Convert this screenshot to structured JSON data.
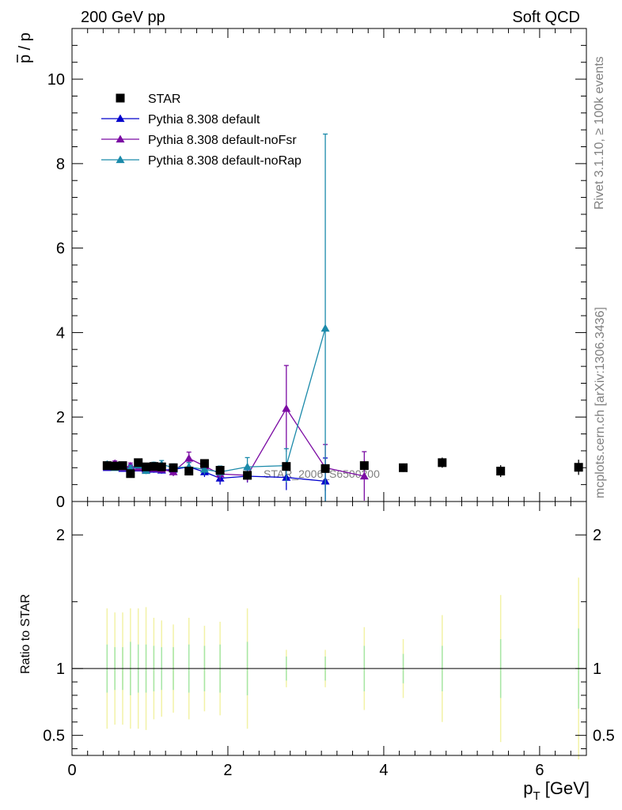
{
  "header": {
    "left": "200 GeV pp",
    "right": "Soft QCD"
  },
  "side_text": {
    "rivet": "Rivet 3.1.10, ≥ 100k events",
    "mcplots": "mcplots.cern.ch [arXiv:1306.3436]"
  },
  "watermark": "STAR_2006_S6500200",
  "chart_data": {
    "type": "scatter",
    "main": {
      "ylabel_main": "p",
      "ylabel_denom": "p",
      "ylabel_sep": " / ",
      "xlim": [
        0,
        6.6
      ],
      "ylim": [
        0,
        11.2
      ],
      "yticks": [
        0,
        2,
        4,
        6,
        8,
        10
      ],
      "ytick_labels": [
        "0",
        "2",
        "4",
        "6",
        "8",
        "10"
      ]
    },
    "ratio": {
      "ylabel": "Ratio to STAR",
      "ylim": [
        0.35,
        2.25
      ],
      "yticks": [
        0.5,
        1,
        2
      ],
      "ytick_labels": [
        "0.5",
        "1",
        "2"
      ]
    },
    "xlabel_main": "p",
    "xlabel_sub": "T",
    "xlabel_unit": " [GeV]",
    "xticks": [
      0,
      2,
      4,
      6
    ],
    "xtick_labels": [
      "0",
      "2",
      "4",
      "6"
    ],
    "legend": {
      "placement": "top-left",
      "entries": [
        {
          "label": "STAR",
          "color": "#000000",
          "marker": "square"
        },
        {
          "label": "Pythia 8.308 default",
          "color": "#0000cc",
          "marker": "triangle"
        },
        {
          "label": "Pythia 8.308 default-noFsr",
          "color": "#7b0ba3",
          "marker": "triangle"
        },
        {
          "label": "Pythia 8.308 default-noRap",
          "color": "#1b8aaa",
          "marker": "triangle"
        }
      ]
    },
    "data": {
      "x": [
        0.45,
        0.55,
        0.65,
        0.75,
        0.85,
        0.95,
        1.05,
        1.15,
        1.3,
        1.5,
        1.7,
        1.9,
        2.25,
        2.75,
        3.25,
        3.75,
        4.25,
        4.75,
        5.5,
        6.5
      ],
      "y": [
        0.85,
        0.84,
        0.85,
        0.66,
        0.92,
        0.82,
        0.83,
        0.82,
        0.8,
        0.72,
        0.9,
        0.74,
        0.62,
        0.83,
        0.78,
        0.85,
        0.8,
        0.92,
        0.72,
        0.81
      ],
      "err": [
        0.04,
        0.04,
        0.04,
        0.04,
        0.05,
        0.05,
        0.05,
        0.05,
        0.05,
        0.05,
        0.06,
        0.06,
        0.07,
        0.08,
        0.09,
        0.1,
        0.1,
        0.12,
        0.14,
        0.18
      ]
    },
    "series": [
      {
        "name": "Pythia 8.308 default",
        "color": "#0000cc",
        "x": [
          0.45,
          0.55,
          0.65,
          0.75,
          0.85,
          0.95,
          1.05,
          1.15,
          1.3,
          1.5,
          1.7,
          1.9,
          2.25,
          2.75,
          3.25
        ],
        "y": [
          0.8,
          0.82,
          0.78,
          0.8,
          0.79,
          0.77,
          0.76,
          0.74,
          0.76,
          0.82,
          0.7,
          0.55,
          0.6,
          0.57,
          0.48
        ],
        "err": [
          0.06,
          0.06,
          0.07,
          0.07,
          0.07,
          0.08,
          0.08,
          0.08,
          0.09,
          0.1,
          0.12,
          0.15,
          0.15,
          0.3,
          0.55
        ]
      },
      {
        "name": "Pythia 8.308 default-noFsr",
        "color": "#7b0ba3",
        "x": [
          0.45,
          0.55,
          0.65,
          0.75,
          0.85,
          0.95,
          1.05,
          1.15,
          1.3,
          1.5,
          1.7,
          1.9,
          2.25,
          2.75,
          3.25,
          3.75
        ],
        "y": [
          0.82,
          0.9,
          0.8,
          0.84,
          0.8,
          0.75,
          0.78,
          0.76,
          0.7,
          1.02,
          0.84,
          0.65,
          0.62,
          2.2,
          0.8,
          0.6
        ],
        "err": [
          0.06,
          0.06,
          0.07,
          0.07,
          0.07,
          0.08,
          0.08,
          0.08,
          0.1,
          0.15,
          0.14,
          0.15,
          0.16,
          1.02,
          0.55,
          0.58
        ]
      },
      {
        "name": "Pythia 8.308 default-noRap",
        "color": "#1b8aaa",
        "x": [
          0.45,
          0.55,
          0.65,
          0.75,
          0.85,
          0.95,
          1.05,
          1.15,
          1.3,
          1.5,
          1.7,
          1.9,
          2.25,
          2.75,
          3.25
        ],
        "y": [
          0.88,
          0.8,
          0.82,
          0.78,
          0.86,
          0.73,
          0.85,
          0.88,
          0.8,
          0.82,
          0.76,
          0.7,
          0.82,
          0.85,
          4.1
        ],
        "err": [
          0.06,
          0.06,
          0.07,
          0.07,
          0.07,
          0.08,
          0.08,
          0.09,
          0.09,
          0.1,
          0.12,
          0.14,
          0.22,
          0.4,
          4.6
        ]
      }
    ],
    "ratio_band": {
      "x": [
        0.45,
        0.55,
        0.65,
        0.75,
        0.85,
        0.95,
        1.05,
        1.15,
        1.3,
        1.5,
        1.7,
        1.9,
        2.25,
        2.75,
        3.25,
        3.75,
        4.25,
        4.75,
        5.5,
        6.5
      ],
      "inner": [
        0.18,
        0.16,
        0.16,
        0.2,
        0.18,
        0.18,
        0.17,
        0.16,
        0.16,
        0.18,
        0.17,
        0.18,
        0.2,
        0.09,
        0.09,
        0.17,
        0.11,
        0.17,
        0.22,
        0.3
      ],
      "outer": [
        0.45,
        0.42,
        0.42,
        0.45,
        0.45,
        0.46,
        0.38,
        0.36,
        0.33,
        0.38,
        0.32,
        0.35,
        0.45,
        0.14,
        0.14,
        0.31,
        0.22,
        0.4,
        0.55,
        0.68
      ]
    }
  }
}
